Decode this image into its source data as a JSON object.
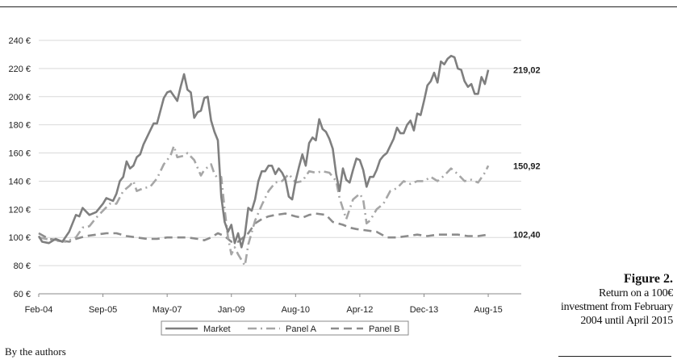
{
  "figure": {
    "title": "Figure 2.",
    "description": "Return on a 100€ investment from February 2004 until April 2015",
    "source": "By the authors"
  },
  "chart_data": {
    "type": "line",
    "title": "",
    "xlabel": "",
    "ylabel": "",
    "x_start": "2004-02",
    "x_end": "2015-08",
    "x_ticks": [
      "Feb-04",
      "Sep-05",
      "May-07",
      "Jan-09",
      "Aug-10",
      "Apr-12",
      "Dec-13",
      "Aug-15"
    ],
    "ylim": [
      60,
      240
    ],
    "y_ticks": [
      "60 €",
      "80 €",
      "100 €",
      "120 €",
      "140 €",
      "160 €",
      "180 €",
      "200 €",
      "220 €",
      "240 €"
    ],
    "grid": "horizontal",
    "legend_position": "bottom",
    "series": [
      {
        "name": "Market",
        "style": "solid",
        "color": "#7f7f7f",
        "end_label": "219,02",
        "points": [
          [
            "2004-02",
            101
          ],
          [
            "2004-03",
            97
          ],
          [
            "2004-05",
            96
          ],
          [
            "2004-07",
            99
          ],
          [
            "2004-09",
            97
          ],
          [
            "2004-11",
            104
          ],
          [
            "2005-01",
            116
          ],
          [
            "2005-02",
            115
          ],
          [
            "2005-03",
            121
          ],
          [
            "2005-05",
            116
          ],
          [
            "2005-07",
            118
          ],
          [
            "2005-09",
            124
          ],
          [
            "2005-10",
            128
          ],
          [
            "2005-12",
            126
          ],
          [
            "2006-01",
            131
          ],
          [
            "2006-02",
            140
          ],
          [
            "2006-03",
            143
          ],
          [
            "2006-04",
            154
          ],
          [
            "2006-05",
            149
          ],
          [
            "2006-06",
            151
          ],
          [
            "2006-07",
            157
          ],
          [
            "2006-08",
            159
          ],
          [
            "2006-09",
            166
          ],
          [
            "2006-11",
            176
          ],
          [
            "2006-12",
            181
          ],
          [
            "2007-01",
            181
          ],
          [
            "2007-03",
            199
          ],
          [
            "2007-04",
            203
          ],
          [
            "2007-05",
            204
          ],
          [
            "2007-07",
            197
          ],
          [
            "2007-08",
            207
          ],
          [
            "2007-09",
            216
          ],
          [
            "2007-10",
            205
          ],
          [
            "2007-11",
            203
          ],
          [
            "2007-12",
            185
          ],
          [
            "2008-01",
            189
          ],
          [
            "2008-02",
            190
          ],
          [
            "2008-03",
            199
          ],
          [
            "2008-04",
            200
          ],
          [
            "2008-05",
            183
          ],
          [
            "2008-06",
            175
          ],
          [
            "2008-07",
            169
          ],
          [
            "2008-08",
            129
          ],
          [
            "2008-09",
            111
          ],
          [
            "2008-10",
            104
          ],
          [
            "2008-11",
            109
          ],
          [
            "2008-12",
            96
          ],
          [
            "2009-01",
            103
          ],
          [
            "2009-02",
            93
          ],
          [
            "2009-03",
            102
          ],
          [
            "2009-04",
            121
          ],
          [
            "2009-05",
            119
          ],
          [
            "2009-06",
            127
          ],
          [
            "2009-07",
            140
          ],
          [
            "2009-08",
            147
          ],
          [
            "2009-09",
            147
          ],
          [
            "2009-10",
            151
          ],
          [
            "2009-11",
            151
          ],
          [
            "2009-12",
            145
          ],
          [
            "2010-01",
            149
          ],
          [
            "2010-02",
            146
          ],
          [
            "2010-03",
            141
          ],
          [
            "2010-04",
            129
          ],
          [
            "2010-05",
            127
          ],
          [
            "2010-06",
            140
          ],
          [
            "2010-07",
            150
          ],
          [
            "2010-08",
            159
          ],
          [
            "2010-09",
            151
          ],
          [
            "2010-10",
            167
          ],
          [
            "2010-11",
            171
          ],
          [
            "2010-12",
            169
          ],
          [
            "2011-01",
            184
          ],
          [
            "2011-02",
            177
          ],
          [
            "2011-03",
            175
          ],
          [
            "2011-04",
            170
          ],
          [
            "2011-05",
            163
          ],
          [
            "2011-06",
            145
          ],
          [
            "2011-07",
            133
          ],
          [
            "2011-08",
            149
          ],
          [
            "2011-09",
            141
          ],
          [
            "2011-10",
            139
          ],
          [
            "2011-11",
            148
          ],
          [
            "2011-12",
            156
          ],
          [
            "2012-01",
            155
          ],
          [
            "2012-02",
            148
          ],
          [
            "2012-03",
            136
          ],
          [
            "2012-04",
            143
          ],
          [
            "2012-05",
            143
          ],
          [
            "2012-06",
            148
          ],
          [
            "2012-07",
            155
          ],
          [
            "2012-08",
            158
          ],
          [
            "2012-09",
            160
          ],
          [
            "2012-10",
            165
          ],
          [
            "2012-11",
            170
          ],
          [
            "2012-12",
            178
          ],
          [
            "2013-01",
            174
          ],
          [
            "2013-02",
            174
          ],
          [
            "2013-03",
            180
          ],
          [
            "2013-04",
            183
          ],
          [
            "2013-05",
            176
          ],
          [
            "2013-06",
            188
          ],
          [
            "2013-07",
            187
          ],
          [
            "2013-08",
            197
          ],
          [
            "2013-09",
            208
          ],
          [
            "2013-10",
            211
          ],
          [
            "2013-11",
            217
          ],
          [
            "2013-12",
            210
          ],
          [
            "2014-01",
            225
          ],
          [
            "2014-02",
            223
          ],
          [
            "2014-03",
            227
          ],
          [
            "2014-04",
            229
          ],
          [
            "2014-05",
            228
          ],
          [
            "2014-06",
            220
          ],
          [
            "2014-07",
            219
          ],
          [
            "2014-08",
            211
          ],
          [
            "2014-09",
            207
          ],
          [
            "2014-10",
            209
          ],
          [
            "2014-11",
            202
          ],
          [
            "2014-12",
            202
          ],
          [
            "2015-01",
            214
          ],
          [
            "2015-02",
            209
          ],
          [
            "2015-03",
            219
          ]
        ]
      },
      {
        "name": "Panel A",
        "style": "dashdot",
        "color": "#a6a6a6",
        "end_label": "150,92",
        "points": [
          [
            "2004-02",
            100
          ],
          [
            "2004-06",
            98
          ],
          [
            "2004-10",
            97
          ],
          [
            "2005-01",
            100
          ],
          [
            "2005-03",
            107
          ],
          [
            "2005-05",
            108
          ],
          [
            "2005-07",
            114
          ],
          [
            "2005-09",
            119
          ],
          [
            "2005-11",
            124
          ],
          [
            "2006-01",
            124
          ],
          [
            "2006-03",
            133
          ],
          [
            "2006-05",
            137
          ],
          [
            "2006-06",
            140
          ],
          [
            "2006-07",
            133
          ],
          [
            "2006-09",
            135
          ],
          [
            "2006-11",
            136
          ],
          [
            "2007-01",
            142
          ],
          [
            "2007-03",
            152
          ],
          [
            "2007-05",
            158
          ],
          [
            "2007-06",
            165
          ],
          [
            "2007-07",
            157
          ],
          [
            "2007-09",
            158
          ],
          [
            "2007-10",
            160
          ],
          [
            "2007-12",
            155
          ],
          [
            "2008-02",
            144
          ],
          [
            "2008-03",
            148
          ],
          [
            "2008-05",
            152
          ],
          [
            "2008-06",
            145
          ],
          [
            "2008-07",
            142
          ],
          [
            "2008-08",
            143
          ],
          [
            "2008-09",
            120
          ],
          [
            "2008-10",
            100
          ],
          [
            "2008-11",
            88
          ],
          [
            "2008-12",
            93
          ],
          [
            "2009-01",
            88
          ],
          [
            "2009-03",
            80
          ],
          [
            "2009-04",
            95
          ],
          [
            "2009-06",
            112
          ],
          [
            "2009-08",
            123
          ],
          [
            "2009-10",
            133
          ],
          [
            "2009-12",
            139
          ],
          [
            "2010-02",
            140
          ],
          [
            "2010-04",
            145
          ],
          [
            "2010-06",
            139
          ],
          [
            "2010-08",
            140
          ],
          [
            "2010-10",
            147
          ],
          [
            "2010-12",
            146
          ],
          [
            "2011-02",
            147
          ],
          [
            "2011-04",
            146
          ],
          [
            "2011-06",
            140
          ],
          [
            "2011-07",
            128
          ],
          [
            "2011-09",
            113
          ],
          [
            "2011-11",
            127
          ],
          [
            "2012-01",
            131
          ],
          [
            "2012-02",
            127
          ],
          [
            "2012-03",
            110
          ],
          [
            "2012-04",
            112
          ],
          [
            "2012-06",
            120
          ],
          [
            "2012-08",
            124
          ],
          [
            "2012-10",
            133
          ],
          [
            "2012-12",
            135
          ],
          [
            "2013-02",
            140
          ],
          [
            "2013-04",
            138
          ],
          [
            "2013-06",
            140
          ],
          [
            "2013-08",
            140
          ],
          [
            "2013-10",
            143
          ],
          [
            "2013-12",
            140
          ],
          [
            "2014-02",
            144
          ],
          [
            "2014-04",
            149
          ],
          [
            "2014-06",
            145
          ],
          [
            "2014-08",
            140
          ],
          [
            "2014-10",
            141
          ],
          [
            "2014-12",
            139
          ],
          [
            "2015-02",
            146
          ],
          [
            "2015-03",
            151
          ]
        ]
      },
      {
        "name": "Panel B",
        "style": "dashed",
        "color": "#8c8c8c",
        "end_label": "102,40",
        "points": [
          [
            "2004-02",
            103
          ],
          [
            "2004-05",
            99
          ],
          [
            "2004-08",
            98
          ],
          [
            "2004-11",
            97
          ],
          [
            "2005-01",
            99
          ],
          [
            "2005-04",
            101
          ],
          [
            "2005-07",
            102
          ],
          [
            "2005-10",
            103
          ],
          [
            "2006-01",
            103
          ],
          [
            "2006-04",
            101
          ],
          [
            "2006-07",
            100
          ],
          [
            "2006-10",
            99
          ],
          [
            "2007-01",
            99
          ],
          [
            "2007-04",
            100
          ],
          [
            "2007-07",
            100
          ],
          [
            "2007-10",
            100
          ],
          [
            "2008-01",
            99
          ],
          [
            "2008-03",
            98
          ],
          [
            "2008-05",
            100
          ],
          [
            "2008-07",
            103
          ],
          [
            "2008-09",
            101
          ],
          [
            "2008-11",
            97
          ],
          [
            "2009-01",
            97
          ],
          [
            "2009-04",
            103
          ],
          [
            "2009-06",
            110
          ],
          [
            "2009-08",
            113
          ],
          [
            "2009-10",
            115
          ],
          [
            "2009-12",
            116
          ],
          [
            "2010-03",
            117
          ],
          [
            "2010-06",
            115
          ],
          [
            "2010-08",
            114
          ],
          [
            "2010-10",
            116
          ],
          [
            "2010-12",
            117
          ],
          [
            "2011-03",
            116
          ],
          [
            "2011-05",
            111
          ],
          [
            "2011-08",
            109
          ],
          [
            "2011-10",
            107
          ],
          [
            "2011-12",
            106
          ],
          [
            "2012-03",
            105
          ],
          [
            "2012-06",
            104
          ],
          [
            "2012-09",
            100
          ],
          [
            "2012-12",
            100
          ],
          [
            "2013-03",
            101
          ],
          [
            "2013-06",
            102
          ],
          [
            "2013-09",
            101
          ],
          [
            "2013-12",
            102
          ],
          [
            "2014-03",
            102
          ],
          [
            "2014-06",
            102
          ],
          [
            "2014-09",
            101
          ],
          [
            "2014-12",
            101
          ],
          [
            "2015-03",
            102
          ]
        ]
      }
    ]
  }
}
